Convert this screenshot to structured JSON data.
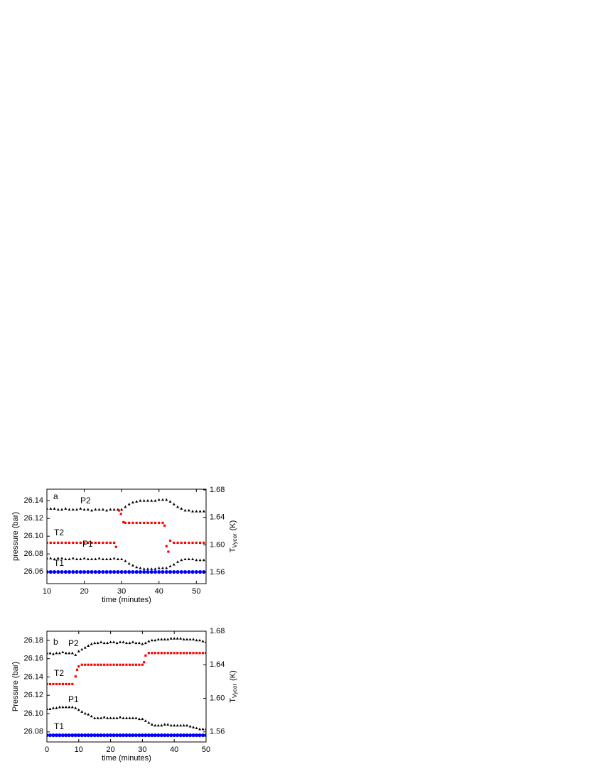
{
  "chart_data": [
    {
      "type": "scatter",
      "xlabel": "time (minutes)",
      "ylabel": "pressure (bar)",
      "y2label": [
        "T",
        "Vycor",
        "(K)"
      ],
      "annotations": [
        "a",
        "P2",
        "T2",
        "P1",
        "T1"
      ],
      "xlim": [
        10,
        52.6
      ],
      "xticks": [
        10,
        20,
        30,
        40,
        50
      ],
      "ylim": [
        26.0465,
        26.153
      ],
      "yticks": [
        26.06,
        26.08,
        {
          "value": 26.1,
          "label": "26.10"
        },
        26.12,
        26.14
      ],
      "y2lim": [
        1.5435,
        1.681
      ],
      "y2ticks": [
        1.56,
        {
          "value": 1.6,
          "label": "1.60"
        },
        1.64,
        1.68
      ],
      "series": [
        {
          "color": "#000000",
          "marker": "triangle",
          "axis": "y",
          "x": [
            10,
            11,
            12,
            13,
            14,
            15,
            16,
            17,
            18,
            19,
            20,
            21,
            22,
            23,
            24,
            25,
            26,
            27,
            28,
            29,
            30,
            31,
            32,
            33,
            34,
            35,
            36,
            37,
            38,
            39,
            40,
            41,
            42,
            43,
            44,
            45,
            46,
            47,
            48,
            49,
            50,
            51,
            52,
            53
          ],
          "values": [
            26.075,
            26.075,
            26.074,
            26.075,
            26.075,
            26.074,
            26.074,
            26.075,
            26.074,
            26.074,
            26.075,
            26.074,
            26.074,
            26.074,
            26.075,
            26.074,
            26.074,
            26.074,
            26.075,
            26.074,
            26.074,
            26.072,
            26.069,
            26.067,
            26.065,
            26.064,
            26.063,
            26.063,
            26.063,
            26.063,
            26.064,
            26.064,
            26.064,
            26.066,
            26.068,
            26.071,
            26.073,
            26.074,
            26.074,
            26.074,
            26.073,
            26.073,
            26.073,
            26.073
          ]
        },
        {
          "color": "#000000",
          "marker": "triangle",
          "axis": "y",
          "x": [
            10,
            11,
            12,
            13,
            14,
            15,
            16,
            17,
            18,
            19,
            20,
            21,
            22,
            23,
            24,
            25,
            26,
            27,
            28,
            29,
            30,
            31,
            32,
            33,
            34,
            35,
            36,
            37,
            38,
            39,
            40,
            41,
            42,
            43,
            44,
            45,
            46,
            47,
            48,
            49,
            50,
            51,
            52,
            53
          ],
          "values": [
            26.131,
            26.131,
            26.131,
            26.13,
            26.13,
            26.131,
            26.13,
            26.13,
            26.13,
            26.131,
            26.13,
            26.13,
            26.129,
            26.13,
            26.13,
            26.13,
            26.129,
            26.13,
            26.13,
            26.13,
            26.13,
            26.133,
            26.136,
            26.138,
            26.139,
            26.14,
            26.14,
            26.14,
            26.14,
            26.14,
            26.141,
            26.141,
            26.141,
            26.139,
            26.136,
            26.133,
            26.131,
            26.129,
            26.129,
            26.128,
            26.128,
            26.128,
            26.128,
            26.128
          ]
        },
        {
          "color": "#0000ff",
          "marker": "circle",
          "axis": "y2",
          "x": [
            10,
            11,
            12,
            13,
            14,
            15,
            16,
            17,
            18,
            19,
            20,
            21,
            22,
            23,
            24,
            25,
            26,
            27,
            28,
            29,
            30,
            31,
            32,
            33,
            34,
            35,
            36,
            37,
            38,
            39,
            40,
            41,
            42,
            43,
            44,
            45,
            46,
            47,
            48,
            49,
            50,
            51,
            52,
            53
          ],
          "values": [
            1.5605,
            1.5605,
            1.5605,
            1.5605,
            1.5605,
            1.5605,
            1.5605,
            1.5605,
            1.5605,
            1.5605,
            1.5605,
            1.5605,
            1.5605,
            1.5605,
            1.5605,
            1.5605,
            1.5605,
            1.5605,
            1.5605,
            1.5605,
            1.5605,
            1.5605,
            1.5605,
            1.5605,
            1.5605,
            1.5605,
            1.5605,
            1.5605,
            1.5605,
            1.5605,
            1.5605,
            1.5605,
            1.5605,
            1.5605,
            1.5605,
            1.5605,
            1.5605,
            1.5605,
            1.5605,
            1.5605,
            1.5605,
            1.5605,
            1.5605,
            1.5605
          ]
        },
        {
          "color": "#ff0000",
          "marker": "square",
          "axis": "y2",
          "x": [
            10,
            11,
            12,
            13,
            14,
            15,
            16,
            17,
            18,
            19,
            20,
            21,
            22,
            23,
            24,
            25,
            26,
            27,
            28,
            28.5,
            29.3,
            29.8,
            30.5,
            31,
            32,
            33,
            34,
            35,
            36,
            37,
            38,
            39,
            40,
            41,
            41.5,
            42,
            42.5,
            43,
            44,
            45,
            46,
            47,
            48,
            49,
            50,
            51,
            52,
            53
          ],
          "values": [
            1.603,
            1.603,
            1.603,
            1.603,
            1.603,
            1.603,
            1.603,
            1.603,
            1.603,
            1.603,
            1.603,
            1.603,
            1.603,
            1.603,
            1.603,
            1.603,
            1.603,
            1.603,
            1.603,
            1.597,
            1.65,
            1.645,
            1.633,
            1.632,
            1.632,
            1.632,
            1.632,
            1.632,
            1.632,
            1.632,
            1.632,
            1.632,
            1.632,
            1.632,
            1.628,
            1.598,
            1.59,
            1.606,
            1.603,
            1.603,
            1.603,
            1.603,
            1.603,
            1.603,
            1.603,
            1.603,
            1.603,
            1.603
          ]
        }
      ]
    },
    {
      "type": "scatter",
      "xlabel": "time (minutes)",
      "ylabel": "Pressure (bar)",
      "y2label": [
        "T",
        "Vycor",
        "(K)"
      ],
      "annotations": [
        "b",
        "P2",
        "T2",
        "P1",
        "T1"
      ],
      "xlim": [
        0,
        50
      ],
      "xticks": [
        0,
        10,
        20,
        30,
        40,
        50
      ],
      "ylim": [
        26.069,
        26.19
      ],
      "yticks": [
        26.08,
        {
          "value": 26.1,
          "label": "26.10"
        },
        26.12,
        26.14,
        26.16,
        26.18
      ],
      "y2lim": [
        1.548,
        1.68
      ],
      "y2ticks": [
        1.56,
        {
          "value": 1.6,
          "label": "1.60"
        },
        1.64,
        1.68
      ],
      "series": [
        {
          "color": "#000000",
          "marker": "triangle",
          "axis": "y",
          "x": [
            0,
            1,
            2,
            3,
            4,
            5,
            6,
            7,
            8,
            9,
            10,
            11,
            12,
            13,
            14,
            15,
            16,
            17,
            18,
            19,
            20,
            21,
            22,
            23,
            24,
            25,
            26,
            27,
            28,
            29,
            30,
            31,
            32,
            33,
            34,
            35,
            36,
            37,
            38,
            39,
            40,
            41,
            42,
            43,
            44,
            45,
            46,
            47,
            48,
            49,
            50
          ],
          "values": [
            26.166,
            26.166,
            26.165,
            26.166,
            26.166,
            26.167,
            26.166,
            26.166,
            26.166,
            26.164,
            26.168,
            26.17,
            26.172,
            26.174,
            26.176,
            26.177,
            26.177,
            26.178,
            26.177,
            26.177,
            26.178,
            26.178,
            26.177,
            26.178,
            26.178,
            26.177,
            26.177,
            26.178,
            26.177,
            26.177,
            26.176,
            26.177,
            26.179,
            26.18,
            26.18,
            26.181,
            26.181,
            26.181,
            26.181,
            26.182,
            26.182,
            26.182,
            26.182,
            26.181,
            26.181,
            26.181,
            26.181,
            26.18,
            26.18,
            26.179,
            26.178
          ]
        },
        {
          "color": "#000000",
          "marker": "triangle",
          "axis": "y",
          "x": [
            0,
            1,
            2,
            3,
            4,
            5,
            6,
            7,
            8,
            9,
            10,
            11,
            12,
            13,
            14,
            15,
            16,
            17,
            18,
            19,
            20,
            21,
            22,
            23,
            24,
            25,
            26,
            27,
            28,
            29,
            30,
            31,
            32,
            33,
            34,
            35,
            36,
            37,
            38,
            39,
            40,
            41,
            42,
            43,
            44,
            45,
            46,
            47,
            48,
            49,
            50
          ],
          "values": [
            26.105,
            26.105,
            26.106,
            26.106,
            26.107,
            26.107,
            26.107,
            26.107,
            26.107,
            26.106,
            26.104,
            26.102,
            26.1,
            26.099,
            26.097,
            26.095,
            26.095,
            26.095,
            26.096,
            26.095,
            26.095,
            26.095,
            26.095,
            26.096,
            26.095,
            26.095,
            26.095,
            26.095,
            26.095,
            26.094,
            26.094,
            26.092,
            26.09,
            26.088,
            26.087,
            26.087,
            26.087,
            26.088,
            26.088,
            26.087,
            26.087,
            26.087,
            26.087,
            26.087,
            26.087,
            26.086,
            26.085,
            26.084,
            26.083,
            26.083,
            26.083
          ]
        },
        {
          "color": "#0000ff",
          "marker": "circle",
          "axis": "y2",
          "x": [
            0,
            1,
            2,
            3,
            4,
            5,
            6,
            7,
            8,
            9,
            10,
            11,
            12,
            13,
            14,
            15,
            16,
            17,
            18,
            19,
            20,
            21,
            22,
            23,
            24,
            25,
            26,
            27,
            28,
            29,
            30,
            31,
            32,
            33,
            34,
            35,
            36,
            37,
            38,
            39,
            40,
            41,
            42,
            43,
            44,
            45,
            46,
            47,
            48,
            49,
            50
          ],
          "values": [
            1.556,
            1.556,
            1.556,
            1.556,
            1.556,
            1.556,
            1.556,
            1.556,
            1.556,
            1.556,
            1.556,
            1.556,
            1.556,
            1.556,
            1.556,
            1.556,
            1.556,
            1.556,
            1.556,
            1.556,
            1.556,
            1.556,
            1.556,
            1.556,
            1.556,
            1.556,
            1.556,
            1.556,
            1.556,
            1.556,
            1.556,
            1.556,
            1.556,
            1.556,
            1.556,
            1.556,
            1.556,
            1.556,
            1.556,
            1.556,
            1.556,
            1.556,
            1.556,
            1.556,
            1.556,
            1.556,
            1.556,
            1.556,
            1.556,
            1.556,
            1.556
          ]
        },
        {
          "color": "#ff0000",
          "marker": "square",
          "axis": "y2",
          "x": [
            0,
            1,
            2,
            3,
            4,
            5,
            6,
            7,
            8,
            9,
            9.5,
            10,
            11,
            12,
            13,
            14,
            15,
            16,
            17,
            18,
            19,
            20,
            21,
            22,
            23,
            24,
            25,
            26,
            27,
            28,
            29,
            30,
            30.5,
            31,
            32,
            33,
            34,
            35,
            36,
            37,
            38,
            39,
            40,
            41,
            42,
            43,
            44,
            45,
            46,
            47,
            48,
            49,
            50
          ],
          "values": [
            1.617,
            1.617,
            1.617,
            1.617,
            1.617,
            1.617,
            1.617,
            1.617,
            1.617,
            1.626,
            1.634,
            1.638,
            1.64,
            1.64,
            1.64,
            1.64,
            1.64,
            1.64,
            1.64,
            1.64,
            1.64,
            1.64,
            1.64,
            1.64,
            1.64,
            1.64,
            1.64,
            1.64,
            1.64,
            1.64,
            1.64,
            1.64,
            1.643,
            1.651,
            1.654,
            1.654,
            1.654,
            1.654,
            1.654,
            1.654,
            1.654,
            1.654,
            1.654,
            1.654,
            1.654,
            1.654,
            1.654,
            1.654,
            1.654,
            1.654,
            1.654,
            1.654,
            1.654
          ]
        }
      ]
    }
  ]
}
